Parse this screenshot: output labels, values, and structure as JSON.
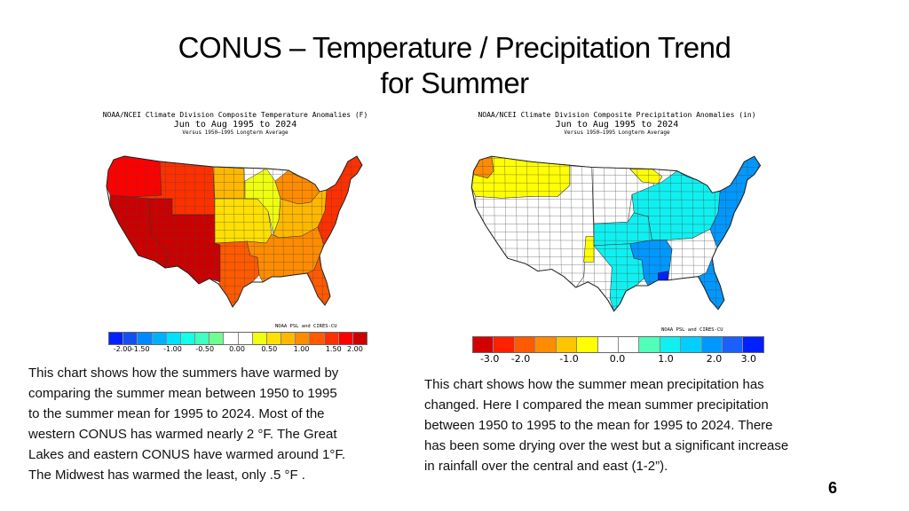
{
  "slide": {
    "title_line1": "CONUS – Temperature / Precipitation Trend",
    "title_line2": "for Summer",
    "page_number": "6"
  },
  "chart_data": [
    {
      "type": "heatmap",
      "subtype": "choropleth-map",
      "title": "NOAA/NCEI Climate Division Composite Temperature Anomalies (F)",
      "subtitle": "Jun to Aug 1995 to 2024",
      "baseline": "Versus 1950–1995 Longterm Average",
      "credit": "NOAA PSL and CIRES-CU",
      "units": "F",
      "colorbar": {
        "ticks": [
          "-2.00",
          "-1.50",
          "-1.00",
          "-0.50",
          "0.00",
          "0.50",
          "1.00",
          "1.50",
          "2.00"
        ],
        "range": [
          -2.0,
          2.0
        ],
        "colors": [
          "#0022ff",
          "#1450f0",
          "#0088ff",
          "#00b0ff",
          "#00e0ff",
          "#14ffe6",
          "#40ffc0",
          "#70ff90",
          "#ffffff",
          "#ffffff",
          "#f0ff10",
          "#ffe000",
          "#ffb800",
          "#ff8c00",
          "#ff5a00",
          "#ff3000",
          "#ff0000",
          "#cc0000"
        ]
      },
      "regions": [
        {
          "name": "Pacific Northwest",
          "value": 1.75
        },
        {
          "name": "California / Great Basin",
          "value": 2.0
        },
        {
          "name": "Southwest (AZ/NM/UT)",
          "value": 2.0
        },
        {
          "name": "Northern Rockies / Plains (MT/WY/CO)",
          "value": 1.5
        },
        {
          "name": "Texas / Southern Plains",
          "value": 1.25
        },
        {
          "name": "Northern Plains (Dakotas)",
          "value": 0.75
        },
        {
          "name": "Central Plains / Midwest (NE/KS/IA/MO)",
          "value": 0.5
        },
        {
          "name": "Iowa / Illinois core",
          "value": 0.25
        },
        {
          "name": "Great Lakes",
          "value": 1.0
        },
        {
          "name": "Ohio Valley / Tennessee",
          "value": 0.75
        },
        {
          "name": "Southeast / Gulf Coast",
          "value": 1.0
        },
        {
          "name": "Florida",
          "value": 1.25
        },
        {
          "name": "Mid-Atlantic / New England",
          "value": 1.5
        }
      ]
    },
    {
      "type": "heatmap",
      "subtype": "choropleth-map",
      "title": "NOAA/NCEI Climate Division Composite Precipitation Anomalies (in)",
      "subtitle": "Jun to Aug 1995 to 2024",
      "baseline": "Versus 1950–1995 Longterm Average",
      "credit": "NOAA PSL and CIRES-CU",
      "units": "in",
      "colorbar": {
        "ticks": [
          "-3.0",
          "-2.0",
          "-1.0",
          "0.0",
          "1.0",
          "2.0",
          "3.0"
        ],
        "range": [
          -3.0,
          3.0
        ],
        "colors": [
          "#d40000",
          "#ff2000",
          "#ff5a00",
          "#ff8c00",
          "#ffc400",
          "#ffff00",
          "#ffffff",
          "#ffffff",
          "#50ffb8",
          "#10f0f0",
          "#00d0ff",
          "#0098ff",
          "#1a60ff",
          "#0020ff"
        ]
      },
      "regions": [
        {
          "name": "Western Washington",
          "value": -1.5
        },
        {
          "name": "Pacific Northwest / Northern Rockies",
          "value": -0.75
        },
        {
          "name": "California / Great Basin / Southwest",
          "value": 0.0
        },
        {
          "name": "Eastern New Mexico strip",
          "value": -0.75
        },
        {
          "name": "Northern Plains",
          "value": 0.0
        },
        {
          "name": "Minnesota / Wisconsin pockets",
          "value": -0.75
        },
        {
          "name": "Central Plains / Oklahoma",
          "value": 1.0
        },
        {
          "name": "East Texas",
          "value": 1.0
        },
        {
          "name": "Midwest / Ohio Valley",
          "value": 1.25
        },
        {
          "name": "Lower Mississippi / Gulf Coast",
          "value": 2.0
        },
        {
          "name": "Central Gulf coast (MS/AL)",
          "value": 2.75
        },
        {
          "name": "Southeast (GA/Carolinas)",
          "value": 0.0
        },
        {
          "name": "Florida",
          "value": 1.75
        },
        {
          "name": "Northeast / New England",
          "value": 2.0
        }
      ]
    }
  ],
  "descriptions": {
    "temperature": [
      "This chart shows how the summers have warmed  by",
      "comparing the summer mean between 1950 to 1995",
      "to the summer mean for 1995 to 2024.  Most of the",
      "western CONUS has warmed nearly 2 °F. The Great",
      "Lakes and eastern CONUS have warmed around 1°F.",
      "The Midwest has warmed the least, only .5 °F ."
    ],
    "precipitation": [
      "This chart shows how the summer mean precipitation has",
      "changed.  Here I compared the mean summer precipitation",
      "between 1950 to 1995 to the mean for 1995 to 2024.  There",
      "has been some drying over the west but a significant increase",
      "in rainfall over the central and east (1-2”)."
    ]
  }
}
